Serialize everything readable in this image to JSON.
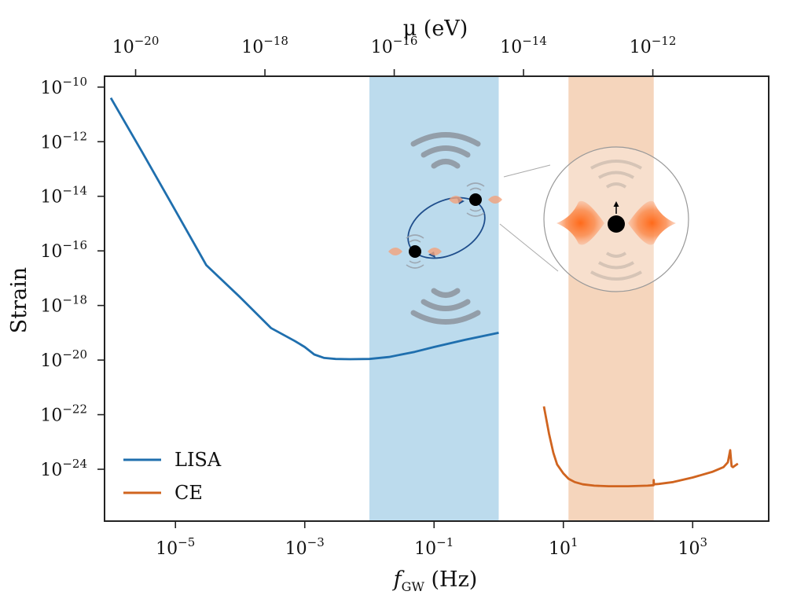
{
  "chart_data": {
    "type": "line",
    "title": "",
    "xlabel": {
      "base": "f",
      "sub": "GW",
      "unit": " (Hz)"
    },
    "ylabel": "Strain",
    "top_xlabel": "μ (eV)",
    "x_scale": "log",
    "y_scale": "log",
    "xlim": [
      8e-07,
      15000
    ],
    "ylim": [
      1.26e-26,
      2.5e-10
    ],
    "x_ticks": [
      {
        "value": 1e-05,
        "base": "10",
        "exp": "−5"
      },
      {
        "value": 0.001,
        "base": "10",
        "exp": "−3"
      },
      {
        "value": 0.1,
        "base": "10",
        "exp": "−1"
      },
      {
        "value": 10.0,
        "base": "10",
        "exp": "1"
      },
      {
        "value": 1000.0,
        "base": "10",
        "exp": "3"
      }
    ],
    "y_ticks": [
      {
        "value": 1e-10,
        "base": "10",
        "exp": "−10"
      },
      {
        "value": 1e-12,
        "base": "10",
        "exp": "−12"
      },
      {
        "value": 1e-14,
        "base": "10",
        "exp": "−14"
      },
      {
        "value": 1e-16,
        "base": "10",
        "exp": "−16"
      },
      {
        "value": 1e-18,
        "base": "10",
        "exp": "−18"
      },
      {
        "value": 1e-20,
        "base": "10",
        "exp": "−20"
      },
      {
        "value": 1e-22,
        "base": "10",
        "exp": "−22"
      },
      {
        "value": 1e-24,
        "base": "10",
        "exp": "−24"
      }
    ],
    "top_ticks": [
      {
        "value": 1e-20,
        "base": "10",
        "exp": "−20"
      },
      {
        "value": 1e-18,
        "base": "10",
        "exp": "−18"
      },
      {
        "value": 1e-16,
        "base": "10",
        "exp": "−16"
      },
      {
        "value": 1e-14,
        "base": "10",
        "exp": "−14"
      },
      {
        "value": 1e-12,
        "base": "10",
        "exp": "−12"
      }
    ],
    "top_axis_hz_per_ev": 242000000000000.0,
    "bands": [
      {
        "name": "lisa-band",
        "x_range": [
          0.01,
          1.0
        ],
        "color": "#bcdbed"
      },
      {
        "name": "ce-band",
        "x_range": [
          12,
          250
        ],
        "color": "#f5d5bc"
      }
    ],
    "legend": {
      "position": "lower-left"
    },
    "series": [
      {
        "name": "LISA",
        "color": "#1f6fae",
        "x": [
          1e-06,
          3e-06,
          1e-05,
          3e-05,
          0.0001,
          0.0003,
          0.0007,
          0.001,
          0.0014,
          0.002,
          0.003,
          0.005,
          0.01,
          0.02,
          0.05,
          0.1,
          0.3,
          1.0
        ],
        "y": [
          4e-11,
          4.5e-13,
          3e-15,
          3e-17,
          2e-18,
          1.5e-19,
          5e-20,
          3e-20,
          1.6e-20,
          1.2e-20,
          1.1e-20,
          1.08e-20,
          1.1e-20,
          1.3e-20,
          2e-20,
          3e-20,
          5.5e-20,
          1e-19
        ]
      },
      {
        "name": "CE",
        "color": "#d0641f",
        "x": [
          5,
          6,
          7,
          8,
          10,
          12,
          15,
          20,
          30,
          50,
          100,
          200,
          249,
          250,
          251,
          300,
          500,
          1000,
          2000,
          3000,
          3500,
          3800,
          4000,
          4200,
          5000
        ],
        "y": [
          2e-22,
          2e-23,
          4e-24,
          1.5e-24,
          7e-25,
          4.5e-25,
          3.4e-25,
          2.8e-25,
          2.5e-25,
          2.4e-25,
          2.4e-25,
          2.5e-25,
          2.6e-25,
          4e-25,
          2.8e-25,
          2.9e-25,
          3.4e-25,
          5e-25,
          8e-25,
          1.2e-24,
          1.8e-24,
          5e-24,
          1.3e-24,
          1.2e-24,
          1.6e-24
        ]
      }
    ]
  }
}
